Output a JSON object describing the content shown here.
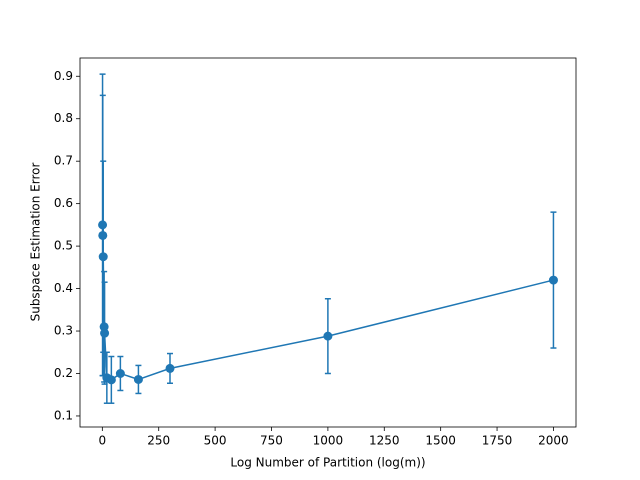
{
  "chart_data": {
    "type": "errorbar_line",
    "x_label": "Log Number of Partition (log(m))",
    "y_label": "Subspace Estimation Error",
    "x": [
      1,
      2,
      4,
      8,
      10,
      20,
      40,
      80,
      160,
      300,
      1000,
      2000
    ],
    "series": [
      {
        "color": "#1f77b4",
        "values": [
          0.55,
          0.525,
          0.475,
          0.31,
          0.295,
          0.19,
          0.185,
          0.2,
          0.186,
          0.212,
          0.288,
          0.42
        ],
        "errors": [
          0.355,
          0.33,
          0.225,
          0.13,
          0.12,
          0.06,
          0.055,
          0.04,
          0.033,
          0.035,
          0.088,
          0.16
        ]
      }
    ],
    "xlim": [
      -99,
      2100
    ],
    "ylim": [
      0.074,
      0.943
    ],
    "xticks": [
      0,
      250,
      500,
      750,
      1000,
      1250,
      1500,
      1750,
      2000
    ],
    "yticks": [
      0.1,
      0.2,
      0.3,
      0.4,
      0.5,
      0.6,
      0.7,
      0.8,
      0.9
    ]
  }
}
